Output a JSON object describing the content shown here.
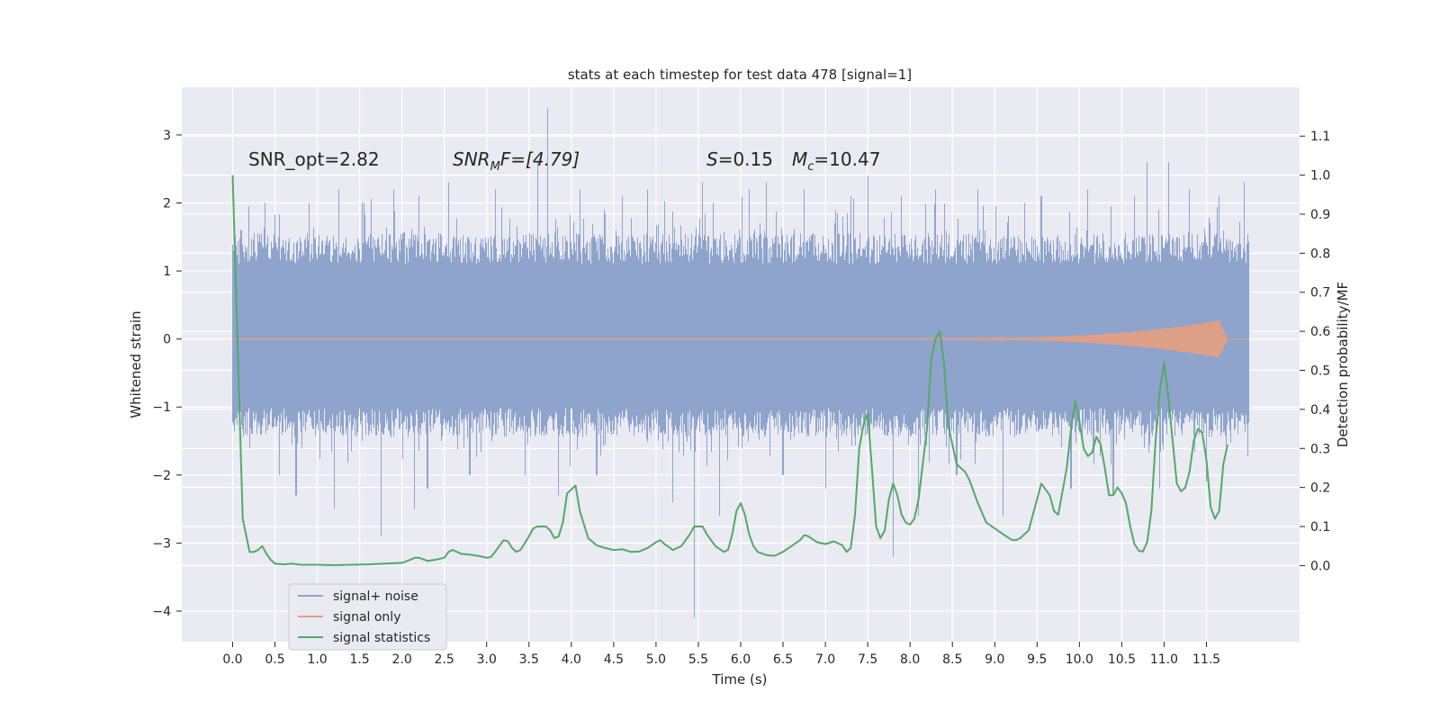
{
  "chart_data": {
    "type": "line",
    "title": "stats at each timestep for test data 478 [signal=1]",
    "xlabel": "Time (s)",
    "ylabel_left": "Whitened strain",
    "ylabel_right": "Detection probability/MF",
    "xlim": [
      -0.6,
      12.6
    ],
    "ylim_left": [
      -4.45,
      3.7
    ],
    "ylim_right": [
      -0.195,
      1.225
    ],
    "x_ticks": [
      "0.0",
      "0.5",
      "1.0",
      "1.5",
      "2.0",
      "2.5",
      "3.0",
      "3.5",
      "4.0",
      "4.5",
      "5.0",
      "5.5",
      "6.0",
      "6.5",
      "7.0",
      "7.5",
      "8.0",
      "8.5",
      "9.0",
      "9.5",
      "10.0",
      "10.5",
      "11.0",
      "11.5"
    ],
    "y_ticks_left": [
      "−4",
      "−3",
      "−2",
      "−1",
      "0",
      "1",
      "2",
      "3"
    ],
    "y_ticks_right": [
      "0.0",
      "0.1",
      "0.2",
      "0.3",
      "0.4",
      "0.5",
      "0.6",
      "0.7",
      "0.8",
      "0.9",
      "1.0",
      "1.1"
    ],
    "grid": true,
    "legend_placement": "lower-left",
    "annotations": {
      "snr_opt": "SNR_opt=2.82",
      "snr_mf_main": "SNR",
      "snr_mf_sub": "M",
      "snr_mf_rest": "F=[4.79]",
      "s_main": "S",
      "s_rest": "=0.15",
      "mc_main": "M",
      "mc_sub": "c",
      "mc_rest": "=10.47"
    },
    "series": [
      {
        "name": "signal+ noise",
        "color": "#8fa4cc",
        "axis": "left",
        "x_range": [
          0.0,
          12.0
        ],
        "typical_envelope": [
          -1.2,
          1.3
        ],
        "spikes": [
          [
            0.2,
            -1.6
          ],
          [
            0.1,
            1.6
          ],
          [
            0.38,
            2.0
          ],
          [
            0.55,
            -2.0
          ],
          [
            0.75,
            -2.3
          ],
          [
            0.9,
            2.0
          ],
          [
            1.2,
            -2.5
          ],
          [
            1.25,
            2.2
          ],
          [
            1.55,
            2.0
          ],
          [
            1.75,
            -2.9
          ],
          [
            1.9,
            2.2
          ],
          [
            2.15,
            -2.5
          ],
          [
            2.2,
            2.1
          ],
          [
            2.3,
            -2.2
          ],
          [
            2.55,
            2.3
          ],
          [
            2.8,
            -2.0
          ],
          [
            3.1,
            2.2
          ],
          [
            3.45,
            -2.0
          ],
          [
            3.6,
            2.6
          ],
          [
            3.72,
            3.4
          ],
          [
            3.85,
            -2.3
          ],
          [
            4.1,
            2.2
          ],
          [
            4.3,
            -2.0
          ],
          [
            4.6,
            2.1
          ],
          [
            4.9,
            2.2
          ],
          [
            5.2,
            -2.4
          ],
          [
            5.45,
            -4.1
          ],
          [
            5.55,
            2.3
          ],
          [
            5.75,
            -2.6
          ],
          [
            6.1,
            2.2
          ],
          [
            6.3,
            2.3
          ],
          [
            6.5,
            -2.0
          ],
          [
            6.75,
            2.2
          ],
          [
            7.0,
            -2.2
          ],
          [
            7.3,
            2.1
          ],
          [
            7.5,
            2.4
          ],
          [
            7.8,
            -3.2
          ],
          [
            7.9,
            2.1
          ],
          [
            8.1,
            -2.6
          ],
          [
            8.3,
            2.2
          ],
          [
            8.55,
            -2.0
          ],
          [
            8.8,
            2.2
          ],
          [
            9.1,
            -2.6
          ],
          [
            9.35,
            2.0
          ],
          [
            9.55,
            2.1
          ],
          [
            9.9,
            -2.2
          ],
          [
            10.1,
            2.2
          ],
          [
            10.4,
            -2.3
          ],
          [
            10.65,
            2.1
          ],
          [
            10.8,
            2.6
          ],
          [
            10.95,
            -2.2
          ],
          [
            11.05,
            2.6
          ],
          [
            11.3,
            2.2
          ],
          [
            11.5,
            -2.1
          ],
          [
            11.65,
            2.1
          ],
          [
            11.95,
            2.3
          ]
        ]
      },
      {
        "name": "signal only",
        "color": "#dd9f86",
        "axis": "left",
        "x_range": [
          0.0,
          12.0
        ],
        "peak_time": 11.65,
        "peak_amplitude": 0.27,
        "chirp_start_time": 7.8
      },
      {
        "name": "signal statistics",
        "color": "#55a868",
        "axis": "right",
        "points": [
          [
            0.0,
            1.0
          ],
          [
            0.12,
            0.12
          ],
          [
            0.2,
            0.035
          ],
          [
            0.25,
            0.035
          ],
          [
            0.3,
            0.04
          ],
          [
            0.35,
            0.05
          ],
          [
            0.4,
            0.03
          ],
          [
            0.45,
            0.015
          ],
          [
            0.5,
            0.005
          ],
          [
            0.6,
            0.003
          ],
          [
            0.7,
            0.005
          ],
          [
            0.8,
            0.002
          ],
          [
            1.0,
            0.002
          ],
          [
            1.2,
            0.001
          ],
          [
            1.4,
            0.002
          ],
          [
            1.6,
            0.003
          ],
          [
            1.8,
            0.005
          ],
          [
            2.0,
            0.007
          ],
          [
            2.1,
            0.015
          ],
          [
            2.15,
            0.02
          ],
          [
            2.2,
            0.02
          ],
          [
            2.3,
            0.012
          ],
          [
            2.4,
            0.015
          ],
          [
            2.5,
            0.02
          ],
          [
            2.55,
            0.035
          ],
          [
            2.6,
            0.04
          ],
          [
            2.7,
            0.03
          ],
          [
            2.8,
            0.028
          ],
          [
            2.9,
            0.025
          ],
          [
            3.0,
            0.02
          ],
          [
            3.05,
            0.022
          ],
          [
            3.1,
            0.035
          ],
          [
            3.2,
            0.065
          ],
          [
            3.25,
            0.062
          ],
          [
            3.3,
            0.045
          ],
          [
            3.35,
            0.035
          ],
          [
            3.4,
            0.04
          ],
          [
            3.5,
            0.075
          ],
          [
            3.55,
            0.095
          ],
          [
            3.6,
            0.1
          ],
          [
            3.7,
            0.1
          ],
          [
            3.75,
            0.09
          ],
          [
            3.8,
            0.07
          ],
          [
            3.85,
            0.075
          ],
          [
            3.9,
            0.11
          ],
          [
            3.95,
            0.185
          ],
          [
            4.05,
            0.205
          ],
          [
            4.1,
            0.14
          ],
          [
            4.2,
            0.07
          ],
          [
            4.3,
            0.052
          ],
          [
            4.4,
            0.045
          ],
          [
            4.5,
            0.04
          ],
          [
            4.6,
            0.042
          ],
          [
            4.7,
            0.035
          ],
          [
            4.8,
            0.036
          ],
          [
            4.9,
            0.045
          ],
          [
            5.0,
            0.06
          ],
          [
            5.05,
            0.065
          ],
          [
            5.1,
            0.055
          ],
          [
            5.2,
            0.04
          ],
          [
            5.3,
            0.05
          ],
          [
            5.4,
            0.08
          ],
          [
            5.45,
            0.1
          ],
          [
            5.55,
            0.1
          ],
          [
            5.6,
            0.08
          ],
          [
            5.7,
            0.05
          ],
          [
            5.8,
            0.035
          ],
          [
            5.85,
            0.04
          ],
          [
            5.9,
            0.08
          ],
          [
            5.95,
            0.14
          ],
          [
            6.0,
            0.16
          ],
          [
            6.05,
            0.13
          ],
          [
            6.1,
            0.08
          ],
          [
            6.15,
            0.05
          ],
          [
            6.2,
            0.035
          ],
          [
            6.3,
            0.027
          ],
          [
            6.4,
            0.025
          ],
          [
            6.5,
            0.035
          ],
          [
            6.6,
            0.05
          ],
          [
            6.7,
            0.065
          ],
          [
            6.75,
            0.078
          ],
          [
            6.8,
            0.075
          ],
          [
            6.9,
            0.06
          ],
          [
            7.0,
            0.055
          ],
          [
            7.1,
            0.062
          ],
          [
            7.2,
            0.052
          ],
          [
            7.25,
            0.035
          ],
          [
            7.3,
            0.045
          ],
          [
            7.35,
            0.13
          ],
          [
            7.4,
            0.3
          ],
          [
            7.45,
            0.36
          ],
          [
            7.5,
            0.39
          ],
          [
            7.55,
            0.25
          ],
          [
            7.6,
            0.1
          ],
          [
            7.65,
            0.07
          ],
          [
            7.7,
            0.09
          ],
          [
            7.75,
            0.17
          ],
          [
            7.8,
            0.21
          ],
          [
            7.85,
            0.18
          ],
          [
            7.9,
            0.13
          ],
          [
            7.95,
            0.11
          ],
          [
            8.0,
            0.105
          ],
          [
            8.05,
            0.12
          ],
          [
            8.1,
            0.17
          ],
          [
            8.2,
            0.35
          ],
          [
            8.25,
            0.53
          ],
          [
            8.3,
            0.58
          ],
          [
            8.35,
            0.6
          ],
          [
            8.4,
            0.52
          ],
          [
            8.45,
            0.36
          ],
          [
            8.55,
            0.26
          ],
          [
            8.6,
            0.25
          ],
          [
            8.65,
            0.24
          ],
          [
            8.7,
            0.22
          ],
          [
            8.8,
            0.16
          ],
          [
            8.9,
            0.11
          ],
          [
            9.0,
            0.095
          ],
          [
            9.1,
            0.08
          ],
          [
            9.2,
            0.066
          ],
          [
            9.25,
            0.065
          ],
          [
            9.3,
            0.07
          ],
          [
            9.4,
            0.09
          ],
          [
            9.5,
            0.17
          ],
          [
            9.55,
            0.21
          ],
          [
            9.65,
            0.18
          ],
          [
            9.7,
            0.14
          ],
          [
            9.75,
            0.13
          ],
          [
            9.85,
            0.25
          ],
          [
            9.9,
            0.35
          ],
          [
            9.95,
            0.42
          ],
          [
            10.0,
            0.37
          ],
          [
            10.05,
            0.3
          ],
          [
            10.1,
            0.28
          ],
          [
            10.15,
            0.29
          ],
          [
            10.2,
            0.33
          ],
          [
            10.25,
            0.31
          ],
          [
            10.3,
            0.25
          ],
          [
            10.35,
            0.18
          ],
          [
            10.4,
            0.18
          ],
          [
            10.45,
            0.2
          ],
          [
            10.5,
            0.185
          ],
          [
            10.55,
            0.16
          ],
          [
            10.6,
            0.1
          ],
          [
            10.65,
            0.055
          ],
          [
            10.7,
            0.038
          ],
          [
            10.75,
            0.036
          ],
          [
            10.8,
            0.06
          ],
          [
            10.85,
            0.14
          ],
          [
            10.9,
            0.32
          ],
          [
            10.95,
            0.45
          ],
          [
            11.0,
            0.52
          ],
          [
            11.05,
            0.43
          ],
          [
            11.1,
            0.32
          ],
          [
            11.15,
            0.21
          ],
          [
            11.2,
            0.19
          ],
          [
            11.25,
            0.2
          ],
          [
            11.3,
            0.24
          ],
          [
            11.35,
            0.32
          ],
          [
            11.4,
            0.35
          ],
          [
            11.45,
            0.34
          ],
          [
            11.5,
            0.27
          ],
          [
            11.55,
            0.15
          ],
          [
            11.6,
            0.12
          ],
          [
            11.65,
            0.14
          ],
          [
            11.7,
            0.26
          ],
          [
            11.75,
            0.31
          ]
        ]
      }
    ]
  }
}
